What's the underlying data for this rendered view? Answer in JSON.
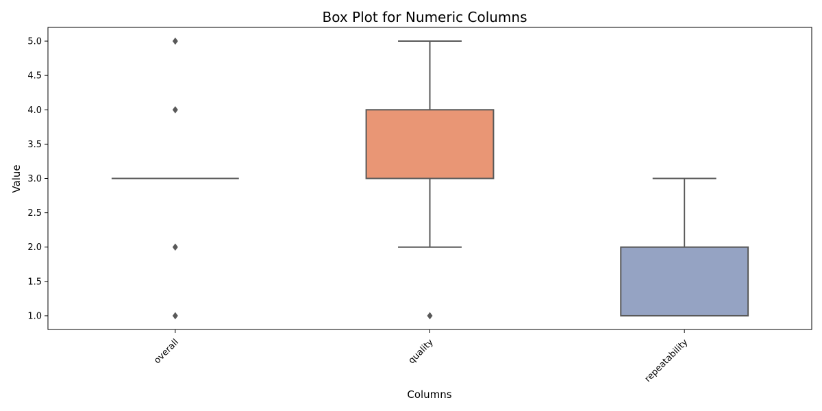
{
  "chart_data": {
    "type": "box",
    "title": "Box Plot for Numeric Columns",
    "xlabel": "Columns",
    "ylabel": "Value",
    "ylim": [
      0.8,
      5.2
    ],
    "yticks": [
      "1.0",
      "1.5",
      "2.0",
      "2.5",
      "3.0",
      "3.5",
      "4.0",
      "4.5",
      "5.0"
    ],
    "grid": false,
    "categories": [
      "overall",
      "quality",
      "repeatability"
    ],
    "boxes": [
      {
        "name": "overall",
        "whisker_low": 3.0,
        "q1": 3.0,
        "median": 3.0,
        "q3": 3.0,
        "whisker_high": 3.0,
        "outliers": [
          1.0,
          2.0,
          4.0,
          5.0
        ],
        "color": "#66c2a5"
      },
      {
        "name": "quality",
        "whisker_low": 2.0,
        "q1": 3.0,
        "median": 3.0,
        "q3": 4.0,
        "whisker_high": 5.0,
        "outliers": [
          1.0
        ],
        "color": "#e99675"
      },
      {
        "name": "repeatability",
        "whisker_low": 1.0,
        "q1": 1.0,
        "median": 1.0,
        "q3": 2.0,
        "whisker_high": 3.0,
        "outliers": [],
        "color": "#95a3c3"
      }
    ],
    "line_color": "#595959"
  }
}
